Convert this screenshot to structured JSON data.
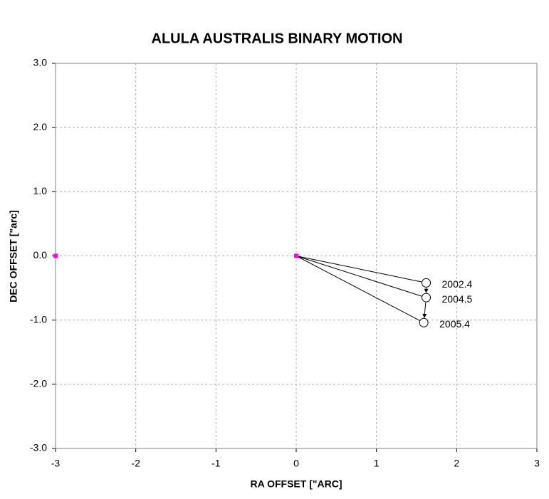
{
  "chart_data": {
    "type": "scatter",
    "title": "ALULA AUSTRALIS BINARY MOTION",
    "x_label": "RA OFFSET [\"ARC]",
    "y_label": "DEC OFFSET [\"arc]",
    "xlim": [
      -3,
      3
    ],
    "ylim": [
      -3,
      3
    ],
    "xticks": [
      -3,
      -2,
      -1,
      0,
      1,
      2,
      3
    ],
    "yticks": [
      {
        "value": 3,
        "label": "3.0"
      },
      {
        "value": 2,
        "label": "2.0"
      },
      {
        "value": 1,
        "label": "1.0"
      },
      {
        "value": 0,
        "label": "0.0"
      },
      {
        "value": -1,
        "label": "-1.0"
      },
      {
        "value": -2,
        "label": "-2.0"
      },
      {
        "value": -3,
        "label": "-3.0"
      }
    ],
    "grid": true,
    "series": [
      {
        "color": "#ff00ff",
        "marker": "square",
        "x": [
          -3,
          0
        ],
        "values": [
          0,
          0
        ]
      },
      {
        "color": "#000000",
        "marker": "circle",
        "x": [
          1.62,
          1.62,
          1.59
        ],
        "values": [
          -0.42,
          -0.65,
          -1.04
        ],
        "value_labels": [
          "2002.4",
          "2004.5",
          "2005.4"
        ]
      }
    ]
  }
}
